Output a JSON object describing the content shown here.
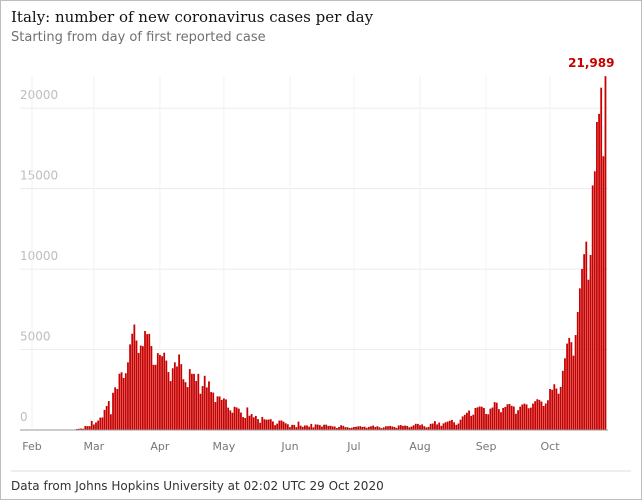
{
  "chart_data": {
    "type": "bar",
    "title": "Italy: number of new coronavirus cases per day",
    "subtitle": "Starting from day of first reported case",
    "source": "Data from Johns Hopkins University at 02:02 UTC 29 Oct 2020",
    "color": "#c70000",
    "grid": true,
    "ylim": [
      0,
      22000
    ],
    "yticks": [
      0,
      5000,
      10000,
      15000,
      20000
    ],
    "categories": [
      null,
      "Feb",
      null,
      null,
      null,
      null,
      null,
      null,
      null,
      null,
      null,
      null,
      null,
      null,
      null,
      null,
      null,
      null,
      null,
      null,
      null,
      null,
      null,
      null,
      null,
      null,
      null,
      null,
      null,
      null,
      "Mar",
      null,
      null,
      null,
      null,
      null,
      null,
      null,
      null,
      null,
      null,
      null,
      null,
      null,
      null,
      null,
      null,
      null,
      null,
      null,
      null,
      null,
      null,
      null,
      null,
      null,
      null,
      null,
      null,
      null,
      null,
      "Apr",
      null,
      null,
      null,
      null,
      null,
      null,
      null,
      null,
      null,
      null,
      null,
      null,
      null,
      null,
      null,
      null,
      null,
      null,
      null,
      null,
      null,
      null,
      null,
      null,
      null,
      null,
      null,
      null,
      null,
      "May",
      null,
      null,
      null,
      null,
      null,
      null,
      null,
      null,
      null,
      null,
      null,
      null,
      null,
      null,
      null,
      null,
      null,
      null,
      null,
      null,
      null,
      null,
      null,
      null,
      null,
      null,
      null,
      null,
      null,
      null,
      "Jun",
      null,
      null,
      null,
      null,
      null,
      null,
      null,
      null,
      null,
      null,
      null,
      null,
      null,
      null,
      null,
      null,
      null,
      null,
      null,
      null,
      null,
      null,
      null,
      null,
      null,
      null,
      null,
      null,
      null,
      "Jul",
      null,
      null,
      null,
      null,
      null,
      null,
      null,
      null,
      null,
      null,
      null,
      null,
      null,
      null,
      null,
      null,
      null,
      null,
      null,
      null,
      null,
      null,
      null,
      null,
      null,
      null,
      null,
      null,
      null,
      null,
      "Aug",
      null,
      null,
      null,
      null,
      null,
      null,
      null,
      null,
      null,
      null,
      null,
      null,
      null,
      null,
      null,
      null,
      null,
      null,
      null,
      null,
      null,
      null,
      null,
      null,
      null,
      null,
      null,
      null,
      null,
      null,
      "Sep",
      null,
      null,
      null,
      null,
      null,
      null,
      null,
      null,
      null,
      null,
      null,
      null,
      null,
      null,
      null,
      null,
      null,
      null,
      null,
      null,
      null,
      null,
      null,
      null,
      null,
      null,
      null,
      null,
      null,
      "Oct",
      null,
      null,
      null,
      null,
      null,
      null,
      null,
      null,
      null,
      null,
      null,
      null,
      null,
      null,
      null,
      null,
      null,
      null,
      null,
      null,
      null,
      null,
      null,
      null,
      null,
      null
    ],
    "values": [
      2,
      0,
      0,
      0,
      0,
      0,
      1,
      0,
      0,
      0,
      0,
      0,
      0,
      0,
      0,
      0,
      0,
      0,
      0,
      0,
      0,
      17,
      62,
      77,
      93,
      78,
      250,
      238,
      240,
      566,
      342,
      466,
      587,
      769,
      778,
      1247,
      1492,
      1797,
      977,
      2313,
      2651,
      2547,
      3497,
      3590,
      3233,
      3526,
      4207,
      5322,
      5986,
      6557,
      5560,
      4789,
      5249,
      5210,
      6153,
      5959,
      5974,
      5217,
      4050,
      4053,
      4782,
      4668,
      4585,
      4805,
      4316,
      3599,
      3039,
      3836,
      4204,
      3951,
      4694,
      4092,
      3153,
      2972,
      2667,
      3786,
      3493,
      3491,
      3047,
      3491,
      2256,
      2729,
      3370,
      2646,
      3021,
      2357,
      2324,
      1739,
      2091,
      2086,
      1872,
      1965,
      1900,
      1389,
      1221,
      1075,
      1444,
      1401,
      1327,
      1083,
      802,
      744,
      1402,
      888,
      992,
      789,
      875,
      675,
      451,
      813,
      665,
      642,
      652,
      669,
      531,
      300,
      397,
      584,
      593,
      516,
      416,
      355,
      178,
      318,
      321,
      177,
      518,
      270,
      197,
      280,
      283,
      202,
      379,
      163,
      346,
      338,
      301,
      210,
      329,
      333,
      251,
      262,
      224,
      218,
      122,
      190,
      296,
      259,
      175,
      174,
      126,
      142,
      187,
      201,
      223,
      235,
      192,
      208,
      138,
      193,
      229,
      276,
      188,
      234,
      169,
      114,
      162,
      230,
      233,
      249,
      219,
      190,
      129,
      282,
      306,
      252,
      275,
      255,
      170,
      212,
      289,
      386,
      379,
      295,
      347,
      238,
      159,
      190,
      384,
      402,
      552,
      347,
      463,
      259,
      412,
      481,
      523,
      574,
      629,
      479,
      320,
      403,
      642,
      845,
      947,
      1071,
      1210,
      878,
      953,
      1366,
      1409,
      1460,
      1444,
      1365,
      996,
      978,
      1326,
      1397,
      1733,
      1695,
      1297,
      1108,
      1370,
      1434,
      1597,
      1616,
      1501,
      1458,
      1008,
      1229,
      1452,
      1585,
      1638,
      1587,
      1350,
      1392,
      1640,
      1786,
      1912,
      1869,
      1766,
      1494,
      1648,
      1851,
      2548,
      2499,
      2844,
      2578,
      2257,
      2677,
      3678,
      4458,
      5372,
      5724,
      5456,
      4619,
      5901,
      7332,
      8804,
      10010,
      10925,
      11705,
      9338,
      10874,
      15199,
      16079,
      19143,
      19644,
      21273,
      17012,
      21989
    ],
    "value_labels": [
      null,
      null,
      null,
      null,
      null,
      null,
      null,
      null,
      null,
      null,
      null,
      null,
      null,
      null,
      null,
      null,
      null,
      null,
      null,
      null,
      null,
      null,
      null,
      null,
      null,
      null,
      null,
      null,
      null,
      null,
      null,
      null,
      null,
      null,
      null,
      null,
      null,
      null,
      null,
      null,
      null,
      null,
      null,
      null,
      null,
      null,
      null,
      null,
      null,
      null,
      null,
      null,
      null,
      null,
      null,
      null,
      null,
      null,
      null,
      null,
      null,
      null,
      null,
      null,
      null,
      null,
      null,
      null,
      null,
      null,
      null,
      null,
      null,
      null,
      null,
      null,
      null,
      null,
      null,
      null,
      null,
      null,
      null,
      null,
      null,
      null,
      null,
      null,
      null,
      null,
      null,
      null,
      null,
      null,
      null,
      null,
      null,
      null,
      null,
      null,
      null,
      null,
      null,
      null,
      null,
      null,
      null,
      null,
      null,
      null,
      null,
      null,
      null,
      null,
      null,
      null,
      null,
      null,
      null,
      null,
      null,
      null,
      null,
      null,
      null,
      null,
      null,
      null,
      null,
      null,
      null,
      null,
      null,
      null,
      null,
      null,
      null,
      null,
      null,
      null,
      null,
      null,
      null,
      null,
      null,
      null,
      null,
      null,
      null,
      null,
      null,
      null,
      null,
      null,
      null,
      null,
      null,
      null,
      null,
      null,
      null,
      null,
      null,
      null,
      null,
      null,
      null,
      null,
      null,
      null,
      null,
      null,
      null,
      null,
      null,
      null,
      null,
      null,
      null,
      null,
      null,
      null,
      null,
      null,
      null,
      null,
      null,
      null,
      null,
      null,
      null,
      null,
      null,
      null,
      null,
      null,
      null,
      null,
      null,
      null,
      null,
      null,
      null,
      null,
      null,
      null,
      null,
      null,
      null,
      null,
      null,
      null,
      null,
      null,
      null,
      null,
      null,
      null,
      null,
      null,
      null,
      null,
      null,
      null,
      null,
      null,
      null,
      null,
      null,
      null,
      null,
      null,
      null,
      null,
      null,
      null,
      null,
      null,
      null,
      null,
      null,
      null,
      null,
      null,
      null,
      null,
      null,
      null,
      null,
      null,
      null,
      null,
      null,
      null,
      null,
      null,
      null,
      null,
      null,
      null,
      null,
      null,
      null,
      null,
      null,
      null,
      null,
      null,
      null,
      null,
      "21,989"
    ]
  }
}
